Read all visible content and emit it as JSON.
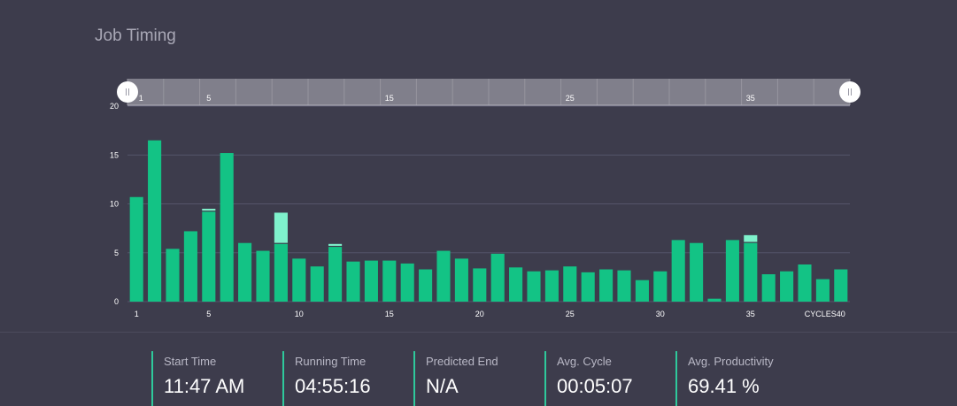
{
  "title": "Job Timing",
  "colors": {
    "background": "#3d3c4c",
    "bar": "#13c385",
    "bar_extra": "#7ff2cc",
    "grid": "#55546a",
    "navigator_bg": "#807f8b",
    "accent": "#2ec99b"
  },
  "navigator": {
    "ticks": [
      "1",
      "5",
      "15",
      "25",
      "35"
    ],
    "range": [
      1,
      40
    ]
  },
  "chart_data": {
    "type": "bar",
    "stacked": true,
    "x": [
      1,
      2,
      3,
      4,
      5,
      6,
      7,
      8,
      9,
      10,
      11,
      12,
      13,
      14,
      15,
      16,
      17,
      18,
      19,
      20,
      21,
      22,
      23,
      24,
      25,
      26,
      27,
      28,
      29,
      30,
      31,
      32,
      33,
      34,
      35,
      36,
      37,
      38,
      39,
      40
    ],
    "series": [
      {
        "values": [
          10.7,
          16.5,
          5.4,
          7.2,
          9.2,
          15.2,
          6.0,
          5.2,
          5.9,
          4.4,
          3.6,
          5.6,
          4.1,
          4.2,
          4.2,
          3.9,
          3.3,
          5.2,
          4.4,
          3.4,
          4.9,
          3.5,
          3.1,
          3.2,
          3.6,
          3.0,
          3.3,
          3.2,
          2.2,
          3.1,
          6.3,
          6.0,
          0.3,
          6.3,
          6.0,
          2.8,
          3.1,
          3.8,
          2.3,
          3.3
        ]
      },
      {
        "values": [
          0,
          0,
          0,
          0,
          0.3,
          0,
          0,
          0,
          3.2,
          0,
          0,
          0.3,
          0,
          0,
          0,
          0,
          0,
          0,
          0,
          0,
          0,
          0,
          0,
          0,
          0,
          0,
          0,
          0,
          0,
          0,
          0,
          0,
          0,
          0,
          0.8,
          0,
          0,
          0,
          0,
          0
        ]
      }
    ],
    "ylim": [
      0,
      20
    ],
    "yticks": [
      "0",
      "5",
      "10",
      "15",
      "20"
    ],
    "xticks": [
      "1",
      "5",
      "10",
      "15",
      "20",
      "25",
      "30",
      "35",
      "40"
    ],
    "xlabel": "CYCLES",
    "grid": true
  },
  "stats": [
    {
      "label": "Start Time",
      "value": "11:47 AM"
    },
    {
      "label": "Running Time",
      "value": "04:55:16"
    },
    {
      "label": "Predicted End",
      "value": "N/A"
    },
    {
      "label": "Avg. Cycle",
      "value": "00:05:07"
    },
    {
      "label": "Avg. Productivity",
      "value": "69.41 %"
    }
  ]
}
